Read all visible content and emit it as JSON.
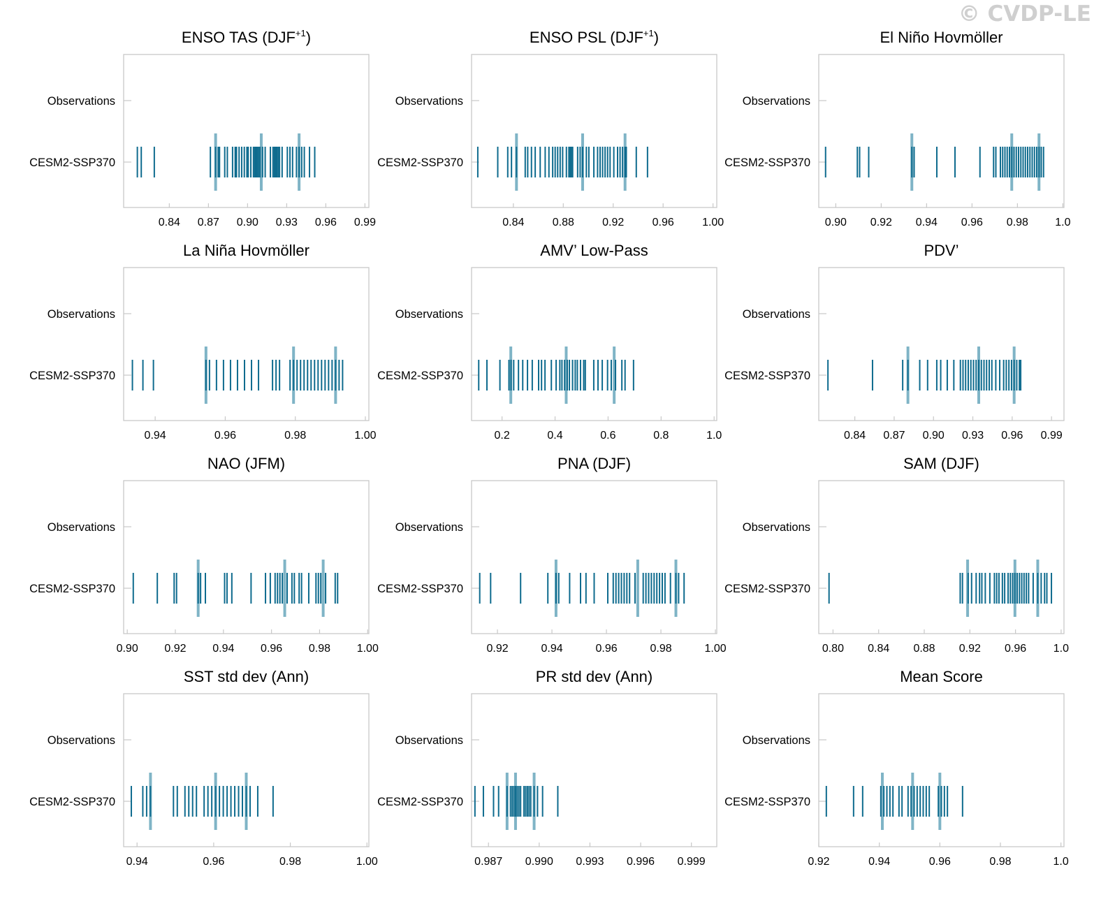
{
  "watermark": "© CVDP-LE",
  "colors": {
    "tick": "#0e6b8e",
    "summary": "#7fb4c6",
    "frame": "#c8c8c8",
    "text": "#000000"
  },
  "chart_data": [
    {
      "type": "strip",
      "title": "ENSO TAS (DJF",
      "title_sup": "+1",
      "title_suffix": ")",
      "categories": [
        "Observations",
        "CESM2-SSP370"
      ],
      "xlim": [
        0.805,
        0.993
      ],
      "xticks": [
        0.84,
        0.87,
        0.9,
        0.93,
        0.96,
        0.99
      ],
      "xtick_labels": [
        "0.84",
        "0.87",
        "0.90",
        "0.93",
        "0.96",
        "0.99"
      ],
      "summary": [
        0.8755,
        0.9105,
        0.9395
      ],
      "values": [
        0.8155,
        0.8185,
        0.8285,
        0.8715,
        0.8755,
        0.8775,
        0.8785,
        0.8825,
        0.8845,
        0.8885,
        0.8905,
        0.8915,
        0.8935,
        0.8955,
        0.8975,
        0.8995,
        0.9005,
        0.9025,
        0.9045,
        0.9055,
        0.9065,
        0.9075,
        0.9085,
        0.9095,
        0.9115,
        0.9135,
        0.9175,
        0.9195,
        0.9205,
        0.9215,
        0.9225,
        0.9235,
        0.9245,
        0.9265,
        0.9305,
        0.9325,
        0.9345,
        0.9375,
        0.9395,
        0.9415,
        0.9435,
        0.9475,
        0.9515
      ]
    },
    {
      "type": "strip",
      "title": "ENSO PSL (DJF",
      "title_sup": "+1",
      "title_suffix": ")",
      "categories": [
        "Observations",
        "CESM2-SSP370"
      ],
      "xlim": [
        0.8065,
        1.003
      ],
      "xticks": [
        0.84,
        0.88,
        0.92,
        0.96,
        1.0
      ],
      "xtick_labels": [
        "0.84",
        "0.88",
        "0.92",
        "0.96",
        "1.00"
      ],
      "summary": [
        0.8425,
        0.8955,
        0.9295
      ],
      "values": [
        0.8115,
        0.8275,
        0.8355,
        0.8385,
        0.8425,
        0.8495,
        0.8515,
        0.8545,
        0.8575,
        0.8615,
        0.8655,
        0.8685,
        0.8715,
        0.8735,
        0.8755,
        0.8775,
        0.8795,
        0.8825,
        0.8845,
        0.8855,
        0.8865,
        0.8875,
        0.8915,
        0.8935,
        0.8955,
        0.8985,
        0.9005,
        0.9045,
        0.9075,
        0.9095,
        0.9115,
        0.9135,
        0.9155,
        0.9175,
        0.9205,
        0.9235,
        0.9255,
        0.9275,
        0.9295,
        0.9305,
        0.9385,
        0.9475
      ]
    },
    {
      "type": "strip",
      "title": "El Niño Hovmöller",
      "categories": [
        "Observations",
        "CESM2-SSP370"
      ],
      "xlim": [
        0.8925,
        1.0005
      ],
      "xticks": [
        0.9,
        0.92,
        0.94,
        0.96,
        0.98,
        1.0
      ],
      "xtick_labels": [
        "0.90",
        "0.92",
        "0.94",
        "0.96",
        "0.98",
        "1.0"
      ],
      "summary": [
        0.9335,
        0.9775,
        0.9895
      ],
      "values": [
        0.8955,
        0.9095,
        0.9105,
        0.9145,
        0.9335,
        0.9345,
        0.9445,
        0.9525,
        0.9635,
        0.9695,
        0.9705,
        0.9725,
        0.9735,
        0.9745,
        0.9755,
        0.9765,
        0.9775,
        0.9785,
        0.9795,
        0.9805,
        0.9815,
        0.9825,
        0.9835,
        0.9845,
        0.9855,
        0.9865,
        0.9875,
        0.9885,
        0.9895,
        0.9905,
        0.9915
      ]
    },
    {
      "type": "strip",
      "title": "La Niña Hovmöller",
      "categories": [
        "Observations",
        "CESM2-SSP370"
      ],
      "xlim": [
        0.931,
        1.001
      ],
      "xticks": [
        0.94,
        0.96,
        0.98,
        1.0
      ],
      "xtick_labels": [
        "0.94",
        "0.96",
        "0.98",
        "1.00"
      ],
      "summary": [
        0.9545,
        0.9795,
        0.9915
      ],
      "values": [
        0.9335,
        0.9365,
        0.9395,
        0.9545,
        0.9555,
        0.9575,
        0.9595,
        0.9615,
        0.9635,
        0.9655,
        0.9675,
        0.9695,
        0.9735,
        0.9745,
        0.9755,
        0.9785,
        0.9795,
        0.9805,
        0.9815,
        0.9825,
        0.9835,
        0.9845,
        0.9855,
        0.9865,
        0.9875,
        0.9885,
        0.9895,
        0.9905,
        0.9915,
        0.9925,
        0.9935
      ]
    },
    {
      "type": "strip",
      "title": "AMV’ Low-Pass",
      "categories": [
        "Observations",
        "CESM2-SSP370"
      ],
      "xlim": [
        0.085,
        1.01
      ],
      "xticks": [
        0.2,
        0.4,
        0.6,
        0.8,
        1.0
      ],
      "xtick_labels": [
        "0.2",
        "0.4",
        "0.6",
        "0.8",
        "1.0"
      ],
      "summary": [
        0.233,
        0.442,
        0.623
      ],
      "values": [
        0.112,
        0.143,
        0.192,
        0.226,
        0.234,
        0.244,
        0.262,
        0.278,
        0.296,
        0.314,
        0.338,
        0.349,
        0.362,
        0.386,
        0.404,
        0.418,
        0.426,
        0.436,
        0.446,
        0.454,
        0.466,
        0.476,
        0.484,
        0.496,
        0.508,
        0.514,
        0.546,
        0.562,
        0.578,
        0.598,
        0.612,
        0.628,
        0.652,
        0.664,
        0.696
      ]
    },
    {
      "type": "strip",
      "title": "PDV’",
      "categories": [
        "Observations",
        "CESM2-SSP370"
      ],
      "xlim": [
        0.8125,
        0.9995
      ],
      "xticks": [
        0.84,
        0.87,
        0.9,
        0.93,
        0.96,
        0.99
      ],
      "xtick_labels": [
        "0.84",
        "0.87",
        "0.90",
        "0.93",
        "0.96",
        "0.99"
      ],
      "summary": [
        0.8805,
        0.9345,
        0.9615
      ],
      "values": [
        0.8195,
        0.8535,
        0.8765,
        0.8805,
        0.8895,
        0.8955,
        0.9025,
        0.9055,
        0.9105,
        0.9155,
        0.9205,
        0.9225,
        0.9245,
        0.9265,
        0.9285,
        0.9305,
        0.9325,
        0.9345,
        0.9365,
        0.9385,
        0.9405,
        0.9425,
        0.9445,
        0.9475,
        0.9505,
        0.9535,
        0.9555,
        0.9575,
        0.9595,
        0.9615,
        0.9635,
        0.9655,
        0.9665
      ]
    },
    {
      "type": "strip",
      "title": "NAO (JFM)",
      "categories": [
        "Observations",
        "CESM2-SSP370"
      ],
      "xlim": [
        0.8985,
        1.0005
      ],
      "xticks": [
        0.9,
        0.92,
        0.94,
        0.96,
        0.98,
        1.0
      ],
      "xtick_labels": [
        "0.90",
        "0.92",
        "0.94",
        "0.96",
        "0.98",
        "1.00"
      ],
      "summary": [
        0.9295,
        0.9655,
        0.9815
      ],
      "values": [
        0.9025,
        0.9125,
        0.9195,
        0.9205,
        0.9295,
        0.9305,
        0.9325,
        0.9405,
        0.9415,
        0.9435,
        0.9515,
        0.9575,
        0.9595,
        0.9615,
        0.9625,
        0.9635,
        0.9645,
        0.9665,
        0.9685,
        0.9695,
        0.9715,
        0.9725,
        0.9755,
        0.9785,
        0.9795,
        0.9805,
        0.9825,
        0.9865,
        0.9875
      ]
    },
    {
      "type": "strip",
      "title": "PNA (DJF)",
      "categories": [
        "Observations",
        "CESM2-SSP370"
      ],
      "xlim": [
        0.9105,
        1.0005
      ],
      "xticks": [
        0.92,
        0.94,
        0.96,
        0.98,
        1.0
      ],
      "xtick_labels": [
        "0.92",
        "0.94",
        "0.96",
        "0.98",
        "1.00"
      ],
      "summary": [
        0.9415,
        0.9715,
        0.9855
      ],
      "values": [
        0.9135,
        0.9175,
        0.9285,
        0.9385,
        0.9415,
        0.9425,
        0.9465,
        0.9505,
        0.9525,
        0.9555,
        0.9605,
        0.9625,
        0.9635,
        0.9645,
        0.9655,
        0.9665,
        0.9675,
        0.9685,
        0.9705,
        0.9735,
        0.9745,
        0.9755,
        0.9765,
        0.9775,
        0.9785,
        0.9795,
        0.9805,
        0.9815,
        0.9835,
        0.9855,
        0.9865,
        0.9885
      ]
    },
    {
      "type": "strip",
      "title": "SAM (DJF)",
      "categories": [
        "Observations",
        "CESM2-SSP370"
      ],
      "xlim": [
        0.7875,
        1.0025
      ],
      "xticks": [
        0.8,
        0.84,
        0.88,
        0.92,
        0.96,
        1.0
      ],
      "xtick_labels": [
        "0.80",
        "0.84",
        "0.88",
        "0.92",
        "0.96",
        "1.0"
      ],
      "summary": [
        0.918,
        0.9595,
        0.9795
      ],
      "values": [
        0.7965,
        0.9115,
        0.9135,
        0.9185,
        0.9215,
        0.9255,
        0.9285,
        0.9305,
        0.9335,
        0.9375,
        0.9415,
        0.9435,
        0.9455,
        0.9485,
        0.9505,
        0.9535,
        0.9555,
        0.9575,
        0.9595,
        0.9615,
        0.9635,
        0.9655,
        0.9675,
        0.9695,
        0.9715,
        0.9755,
        0.9795,
        0.9825,
        0.9855,
        0.9875,
        0.9915
      ]
    },
    {
      "type": "strip",
      "title": "SST std dev (Ann)",
      "categories": [
        "Observations",
        "CESM2-SSP370"
      ],
      "xlim": [
        0.9365,
        1.0005
      ],
      "xticks": [
        0.94,
        0.96,
        0.98,
        1.0
      ],
      "xtick_labels": [
        "0.94",
        "0.96",
        "0.98",
        "1.00"
      ],
      "summary": [
        0.9435,
        0.9605,
        0.9685
      ],
      "values": [
        0.9385,
        0.9415,
        0.9425,
        0.9435,
        0.9495,
        0.9505,
        0.9525,
        0.9535,
        0.9545,
        0.9555,
        0.9575,
        0.9585,
        0.9595,
        0.9605,
        0.9615,
        0.9625,
        0.9635,
        0.9645,
        0.9655,
        0.9665,
        0.9675,
        0.9685,
        0.9695,
        0.9715,
        0.9755
      ]
    },
    {
      "type": "strip",
      "title": "PR std dev (Ann)",
      "categories": [
        "Observations",
        "CESM2-SSP370"
      ],
      "xlim": [
        0.986,
        1.0005
      ],
      "xticks": [
        0.987,
        0.99,
        0.993,
        0.996,
        0.999
      ],
      "xtick_labels": [
        "0.987",
        "0.990",
        "0.993",
        "0.996",
        "0.999"
      ],
      "summary": [
        0.9881,
        0.9886,
        0.9897
      ],
      "values": [
        0.9862,
        0.9867,
        0.9873,
        0.9876,
        0.9881,
        0.9883,
        0.9884,
        0.9885,
        0.9886,
        0.9887,
        0.9888,
        0.9889,
        0.9891,
        0.9892,
        0.9893,
        0.9894,
        0.9895,
        0.9897,
        0.9899,
        0.9902,
        0.9911
      ]
    },
    {
      "type": "strip",
      "title": "Mean Score",
      "categories": [
        "Observations",
        "CESM2-SSP370"
      ],
      "xlim": [
        0.92,
        1.001
      ],
      "xticks": [
        0.92,
        0.94,
        0.96,
        0.98,
        1.0
      ],
      "xtick_labels": [
        "0.92",
        "0.94",
        "0.96",
        "0.98",
        "1.0"
      ],
      "summary": [
        0.941,
        0.951,
        0.96
      ],
      "values": [
        0.9225,
        0.9315,
        0.9345,
        0.9405,
        0.9415,
        0.9425,
        0.9435,
        0.9445,
        0.9465,
        0.9475,
        0.9495,
        0.9505,
        0.9515,
        0.9525,
        0.9535,
        0.9545,
        0.9555,
        0.9565,
        0.9595,
        0.9605,
        0.9615,
        0.9625,
        0.9675
      ]
    }
  ]
}
